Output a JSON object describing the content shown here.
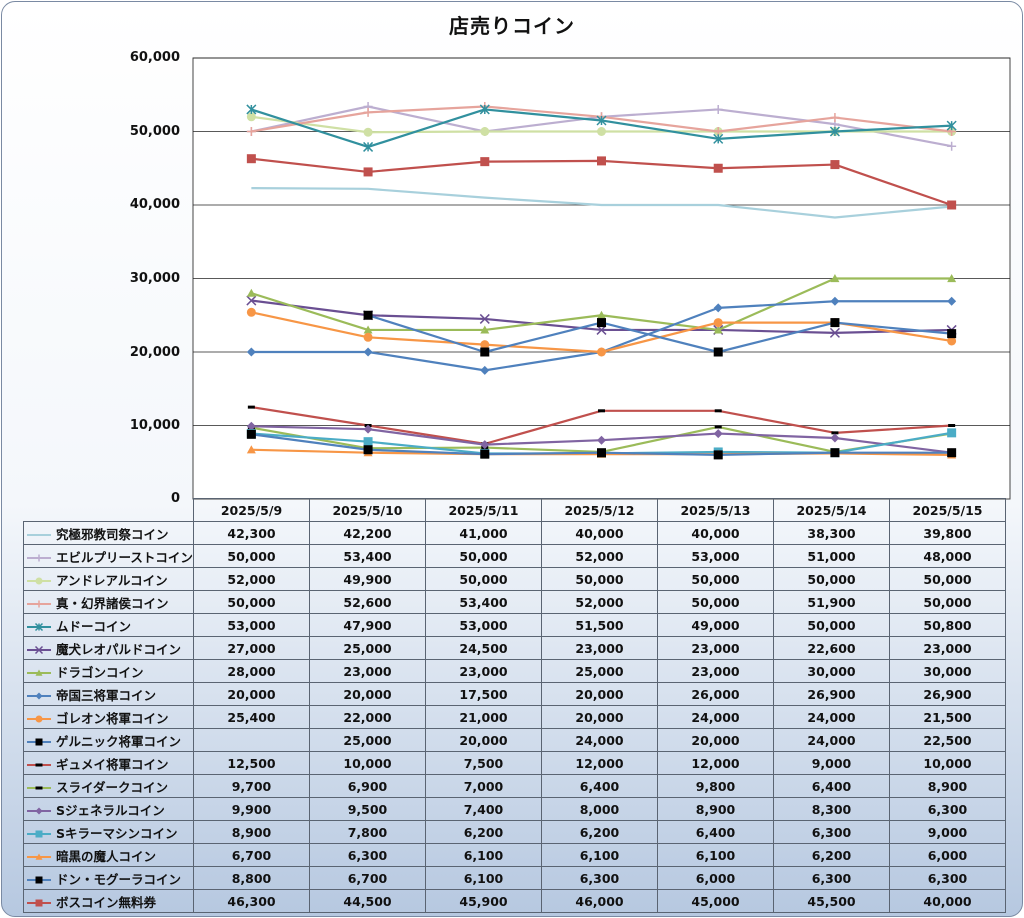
{
  "chart_data": {
    "type": "line",
    "title": "店売りコイン",
    "xlabel": "",
    "ylabel": "",
    "ylim": [
      0,
      60000
    ],
    "yticks": [
      "0",
      "10,000",
      "20,000",
      "30,000",
      "40,000",
      "50,000",
      "60,000"
    ],
    "grid": true,
    "legend": "data-table",
    "categories": [
      "2025/5/9",
      "2025/5/10",
      "2025/5/11",
      "2025/5/12",
      "2025/5/13",
      "2025/5/14",
      "2025/5/15"
    ],
    "series": [
      {
        "name": "究極邪教司祭コイン",
        "color": "#a8d0dc",
        "marker": "none",
        "values": [
          42300,
          42200,
          41000,
          40000,
          40000,
          38300,
          39800
        ],
        "labels": [
          "42,300",
          "42,200",
          "41,000",
          "40,000",
          "40,000",
          "38,300",
          "39,800"
        ]
      },
      {
        "name": "エビルプリーストコイン",
        "color": "#bcaed0",
        "marker": "plus",
        "values": [
          50000,
          53400,
          50000,
          52000,
          53000,
          51000,
          48000
        ],
        "labels": [
          "50,000",
          "53,400",
          "50,000",
          "52,000",
          "53,000",
          "51,000",
          "48,000"
        ]
      },
      {
        "name": "アンドレアルコイン",
        "color": "#cfe0a4",
        "marker": "circle",
        "values": [
          52000,
          49900,
          50000,
          50000,
          50000,
          50000,
          50000
        ],
        "labels": [
          "52,000",
          "49,900",
          "50,000",
          "50,000",
          "50,000",
          "50,000",
          "50,000"
        ]
      },
      {
        "name": "真・幻界諸侯コイン",
        "color": "#e6a49c",
        "marker": "plus",
        "values": [
          50000,
          52600,
          53400,
          52000,
          50000,
          51900,
          50000
        ],
        "labels": [
          "50,000",
          "52,600",
          "53,400",
          "52,000",
          "50,000",
          "51,900",
          "50,000"
        ]
      },
      {
        "name": "ムドーコイン",
        "color": "#31909e",
        "marker": "star",
        "values": [
          53000,
          47900,
          53000,
          51500,
          49000,
          50000,
          50800
        ],
        "labels": [
          "53,000",
          "47,900",
          "53,000",
          "51,500",
          "49,000",
          "50,000",
          "50,800"
        ]
      },
      {
        "name": "魔犬レオパルドコイン",
        "color": "#6a4f92",
        "marker": "x",
        "values": [
          27000,
          25000,
          24500,
          23000,
          23000,
          22600,
          23000
        ],
        "labels": [
          "27,000",
          "25,000",
          "24,500",
          "23,000",
          "23,000",
          "22,600",
          "23,000"
        ]
      },
      {
        "name": "ドラゴンコイン",
        "color": "#9bbb59",
        "marker": "triangle",
        "values": [
          28000,
          23000,
          23000,
          25000,
          23000,
          30000,
          30000
        ],
        "labels": [
          "28,000",
          "23,000",
          "23,000",
          "25,000",
          "23,000",
          "30,000",
          "30,000"
        ]
      },
      {
        "name": "帝国三将軍コイン",
        "color": "#4f81bd",
        "marker": "diamond",
        "values": [
          20000,
          20000,
          17500,
          20000,
          26000,
          26900,
          26900
        ],
        "labels": [
          "20,000",
          "20,000",
          "17,500",
          "20,000",
          "26,000",
          "26,900",
          "26,900"
        ]
      },
      {
        "name": "ゴレオン将軍コイン",
        "color": "#f79646",
        "marker": "circle",
        "values": [
          25400,
          22000,
          21000,
          20000,
          24000,
          24000,
          21500
        ],
        "labels": [
          "25,400",
          "22,000",
          "21,000",
          "20,000",
          "24,000",
          "24,000",
          "21,500"
        ]
      },
      {
        "name": "ゲルニック将軍コイン",
        "color": "#4f81bd",
        "marker": "square",
        "values": [
          null,
          25000,
          20000,
          24000,
          20000,
          24000,
          22500
        ],
        "labels": [
          "",
          "25,000",
          "20,000",
          "24,000",
          "20,000",
          "24,000",
          "22,500"
        ]
      },
      {
        "name": "ギュメイ将軍コイン",
        "color": "#c0504d",
        "marker": "dash",
        "values": [
          12500,
          10000,
          7500,
          12000,
          12000,
          9000,
          10000
        ],
        "labels": [
          "12,500",
          "10,000",
          "7,500",
          "12,000",
          "12,000",
          "9,000",
          "10,000"
        ]
      },
      {
        "name": "スライダークコイン",
        "color": "#9bbb59",
        "marker": "dash",
        "values": [
          9700,
          6900,
          7000,
          6400,
          9800,
          6400,
          8900
        ],
        "labels": [
          "9,700",
          "6,900",
          "7,000",
          "6,400",
          "9,800",
          "6,400",
          "8,900"
        ]
      },
      {
        "name": "Sジェネラルコイン",
        "color": "#8064a2",
        "marker": "diamond",
        "values": [
          9900,
          9500,
          7400,
          8000,
          8900,
          8300,
          6300
        ],
        "labels": [
          "9,900",
          "9,500",
          "7,400",
          "8,000",
          "8,900",
          "8,300",
          "6,300"
        ]
      },
      {
        "name": "Sキラーマシンコイン",
        "color": "#4bacc6",
        "marker": "square",
        "values": [
          8900,
          7800,
          6200,
          6200,
          6400,
          6300,
          9000
        ],
        "labels": [
          "8,900",
          "7,800",
          "6,200",
          "6,200",
          "6,400",
          "6,300",
          "9,000"
        ]
      },
      {
        "name": "暗黒の魔人コイン",
        "color": "#f79646",
        "marker": "triangle",
        "values": [
          6700,
          6300,
          6100,
          6100,
          6100,
          6200,
          6000
        ],
        "labels": [
          "6,700",
          "6,300",
          "6,100",
          "6,100",
          "6,100",
          "6,200",
          "6,000"
        ]
      },
      {
        "name": "ドン・モグーラコイン",
        "color": "#4f81bd",
        "marker": "square",
        "values": [
          8800,
          6700,
          6100,
          6300,
          6000,
          6300,
          6300
        ],
        "labels": [
          "8,800",
          "6,700",
          "6,100",
          "6,300",
          "6,000",
          "6,300",
          "6,300"
        ]
      },
      {
        "name": "ボスコイン無料券",
        "color": "#c0504d",
        "marker": "square",
        "values": [
          46300,
          44500,
          45900,
          46000,
          45000,
          45500,
          40000
        ],
        "labels": [
          "46,300",
          "44,500",
          "45,900",
          "46,000",
          "45,000",
          "45,500",
          "40,000"
        ]
      }
    ]
  }
}
